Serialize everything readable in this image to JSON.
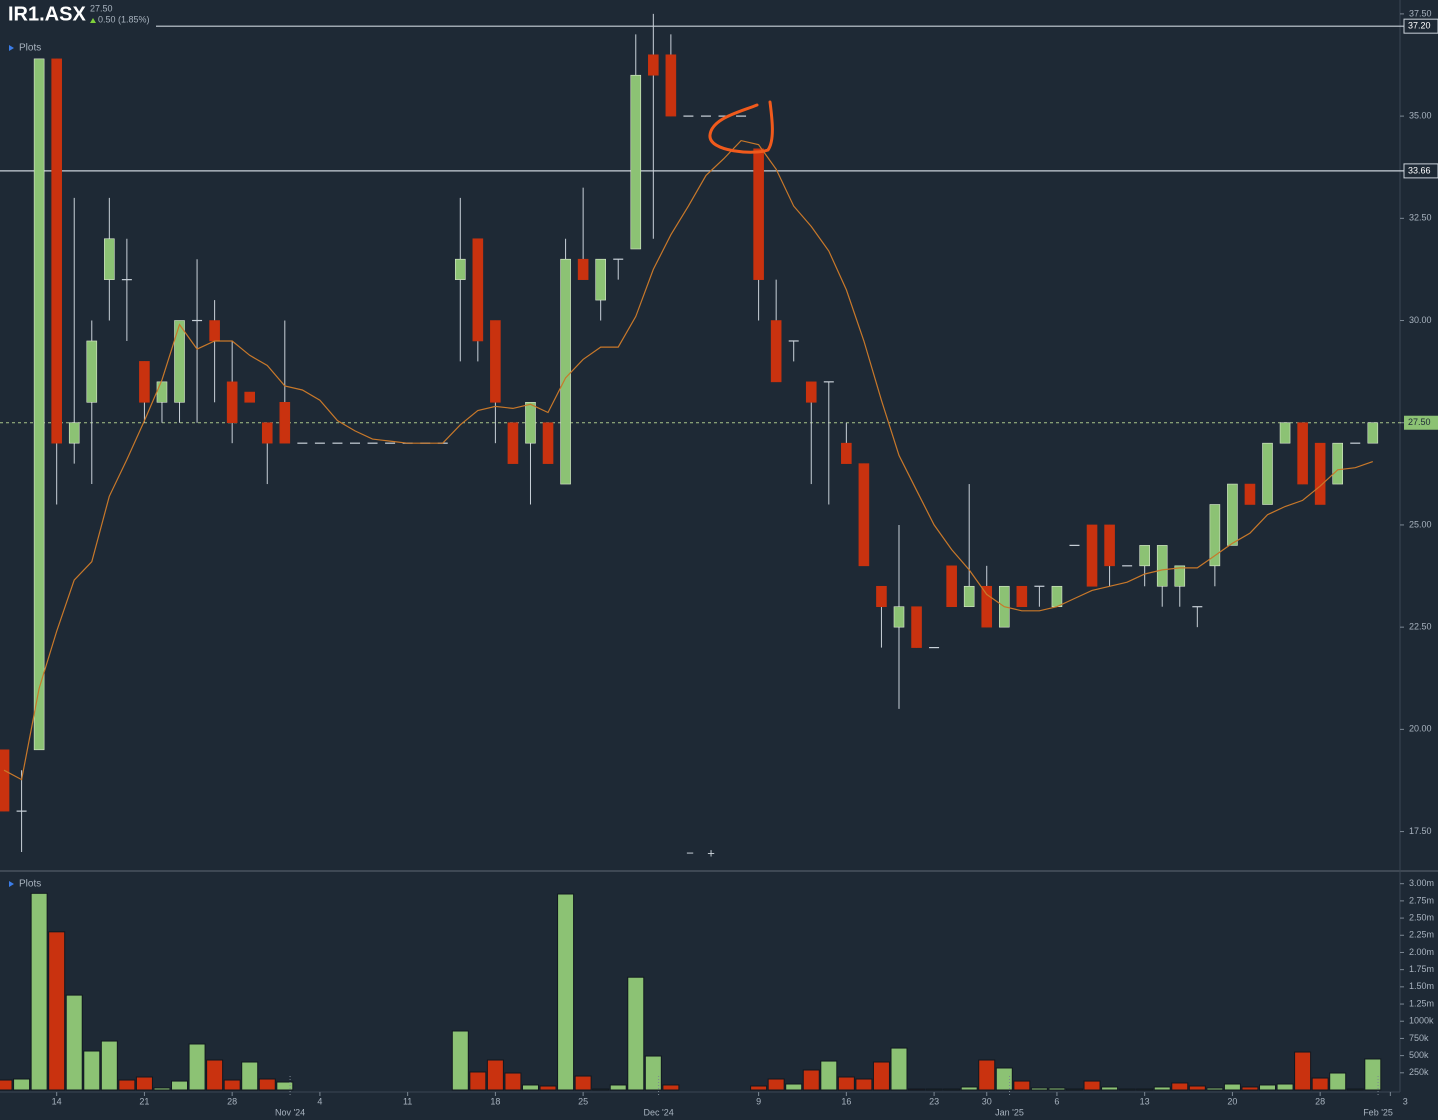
{
  "header": {
    "symbol": "IR1.ASX",
    "price": "27.50",
    "change": "0.50 (1.85%)"
  },
  "controls": {
    "zoom_out": "−",
    "zoom_in": "+"
  },
  "chart_data": [
    {
      "type": "candlestick",
      "legend_label": "Plots",
      "open": [
        19.5,
        18,
        19.5,
        36.4,
        27,
        28,
        31,
        31,
        29,
        28,
        28,
        30,
        30,
        28.5,
        28.25,
        27.5,
        28,
        27,
        27,
        27,
        27,
        27,
        27,
        27,
        27,
        27,
        31,
        32,
        30,
        27.5,
        27,
        27.5,
        26,
        31.5,
        30.5,
        31.5,
        31.75,
        36.5,
        36.5,
        35,
        35,
        35,
        35,
        34.2,
        30,
        29.5,
        28.5,
        28.5,
        27,
        26.5,
        23.5,
        22.5,
        23,
        22,
        24,
        23,
        23.5,
        22.5,
        23.5,
        23.5,
        23,
        24.5,
        25,
        25,
        24,
        24,
        23.5,
        23.5,
        23,
        24,
        24.5,
        26,
        25.5,
        27,
        27.5,
        27,
        26,
        27,
        27
      ],
      "high": [
        19.5,
        19,
        36.4,
        36.4,
        33,
        30,
        33,
        32,
        29,
        28.5,
        30,
        31.5,
        30.5,
        29.5,
        28.25,
        27.5,
        30,
        27,
        27,
        27,
        27,
        27,
        27,
        27,
        27,
        27,
        33,
        32,
        30,
        27.5,
        28,
        27.5,
        32,
        33.25,
        31.5,
        31.5,
        37,
        37.5,
        37,
        35,
        35,
        35,
        35,
        34.2,
        31,
        29.5,
        28.5,
        28.5,
        27.5,
        26.5,
        23.5,
        25,
        23,
        22,
        24,
        26,
        24,
        23.5,
        23.5,
        23.5,
        23.5,
        24.5,
        25,
        25,
        24,
        24.5,
        24.5,
        24,
        23,
        25.5,
        26,
        26,
        27,
        27.5,
        27.5,
        27,
        27,
        27,
        27.5
      ],
      "low": [
        18,
        17,
        19.5,
        25.5,
        26.5,
        26,
        30,
        29.5,
        27.5,
        27.5,
        27.5,
        27.5,
        28,
        27,
        28,
        26,
        27,
        27,
        27,
        27,
        27,
        27,
        27,
        27,
        27,
        27,
        29,
        29,
        27,
        26.5,
        25.5,
        26.5,
        26,
        31,
        30,
        31,
        31.75,
        32,
        35,
        35,
        35,
        35,
        35,
        30,
        28.5,
        29,
        26,
        25.5,
        26.5,
        24,
        22,
        20.5,
        22,
        22,
        23,
        23,
        22.5,
        22.5,
        23,
        23,
        23,
        24.5,
        23.5,
        23.5,
        24,
        23.5,
        23,
        23,
        22.5,
        23.5,
        24.5,
        25.5,
        25.5,
        27,
        26,
        25.5,
        26,
        27,
        27
      ],
      "close": [
        18,
        18,
        36.4,
        27,
        27.5,
        29.5,
        32,
        31,
        28,
        28.5,
        30,
        30,
        29.5,
        27.5,
        28,
        27,
        27,
        27,
        27,
        27,
        27,
        27,
        27,
        27,
        27,
        27,
        31.5,
        29.5,
        28,
        26.5,
        28,
        26.5,
        31.5,
        31,
        31.5,
        31.5,
        36,
        36,
        35,
        35,
        35,
        35,
        35,
        31,
        28.5,
        29.5,
        28,
        28.5,
        26.5,
        24,
        23,
        23,
        22,
        22,
        23,
        23.5,
        22.5,
        23.5,
        23,
        23.5,
        23.5,
        24.5,
        23.5,
        24,
        24,
        24.5,
        24.5,
        24,
        23,
        25.5,
        26,
        25.5,
        27,
        27.5,
        26,
        25.5,
        27,
        27,
        27.5
      ],
      "up_color": "#8cc274",
      "down_color": "#c9320f",
      "ma": {
        "color": "#c8782a",
        "values": [
          19,
          18.77,
          21,
          22.4,
          23.65,
          24.1,
          25.7,
          26.6,
          27.55,
          28.55,
          29.9,
          29.3,
          29.5,
          29.5,
          29.15,
          28.9,
          28.4,
          28.3,
          28.05,
          27.55,
          27.3,
          27.1,
          27.05,
          27,
          27,
          27,
          27.45,
          27.8,
          27.9,
          27.85,
          27.95,
          27.75,
          28.6,
          29.05,
          29.35,
          29.35,
          30.1,
          31.25,
          32.1,
          32.8,
          33.55,
          33.95,
          34.4,
          34.3,
          33.7,
          32.8,
          32.3,
          31.7,
          30.75,
          29.5,
          28.05,
          26.7,
          25.85,
          25,
          24.4,
          23.9,
          23.3,
          23,
          22.9,
          22.9,
          23,
          23.2,
          23.4,
          23.5,
          23.6,
          23.8,
          23.9,
          23.95,
          23.95,
          24.25,
          24.55,
          24.8,
          25.25,
          25.45,
          25.6,
          25.95,
          26.35,
          26.4,
          26.55
        ]
      },
      "xlim": [
        -0.23,
        79.55
      ],
      "ylim": [
        16.56,
        37.84
      ],
      "yticks": [
        {
          "value": 37.5,
          "label": "37.50"
        },
        {
          "value": 35,
          "label": "35.00"
        },
        {
          "value": 32.5,
          "label": "32.50"
        },
        {
          "value": 30,
          "label": "30.00"
        },
        {
          "value": 27.5,
          "label": "27.50"
        },
        {
          "value": 25,
          "label": "25.00"
        },
        {
          "value": 22.5,
          "label": "22.50"
        },
        {
          "value": 20,
          "label": "20.00"
        },
        {
          "value": 17.5,
          "label": "17.50"
        }
      ],
      "levels": [
        {
          "value": 37.2,
          "label": "37.20"
        },
        {
          "value": 33.66,
          "label": "33.66"
        }
      ],
      "last": {
        "value": 27.5,
        "label": "27.50"
      }
    },
    {
      "type": "volume",
      "legend_label": "Plots",
      "values": [
        145000,
        160000,
        2860000,
        2300000,
        1380000,
        567000,
        712000,
        145000,
        189000,
        30000,
        130000,
        669000,
        436000,
        145000,
        407000,
        160000,
        116000,
        0,
        0,
        0,
        0,
        0,
        0,
        0,
        0,
        0,
        858000,
        262000,
        436000,
        247000,
        73000,
        58000,
        2850000,
        203000,
        15000,
        73000,
        1640000,
        494000,
        73000,
        0,
        0,
        0,
        0,
        58000,
        160000,
        87000,
        291000,
        421000,
        189000,
        160000,
        407000,
        610000,
        15000,
        15000,
        15000,
        44000,
        436000,
        320000,
        130000,
        29000,
        29000,
        15000,
        130000,
        44000,
        15000,
        15000,
        44000,
        102000,
        58000,
        29000,
        87000,
        44000,
        73000,
        87000,
        552000,
        174000,
        247000,
        15000,
        451000
      ],
      "xlim": [
        -0.23,
        79.55
      ],
      "ylim": [
        0,
        3170000
      ],
      "yticks": [
        {
          "value": 3000000,
          "label": "3.00m"
        },
        {
          "value": 2750000,
          "label": "2.75m"
        },
        {
          "value": 2500000,
          "label": "2.50m"
        },
        {
          "value": 2250000,
          "label": "2.25m"
        },
        {
          "value": 2000000,
          "label": "2.00m"
        },
        {
          "value": 1750000,
          "label": "1.75m"
        },
        {
          "value": 1500000,
          "label": "1.50m"
        },
        {
          "value": 1250000,
          "label": "1.25m"
        },
        {
          "value": 1000000,
          "label": "1000k"
        },
        {
          "value": 750000,
          "label": "750k"
        },
        {
          "value": 500000,
          "label": "500k"
        },
        {
          "value": 250000,
          "label": "250k"
        }
      ],
      "xticks": [
        {
          "value": 3,
          "label": "14"
        },
        {
          "value": 8,
          "label": "21"
        },
        {
          "value": 13,
          "label": "28"
        },
        {
          "value": 18,
          "label": "4"
        },
        {
          "value": 23,
          "label": "11"
        },
        {
          "value": 28,
          "label": "18"
        },
        {
          "value": 33,
          "label": "25"
        },
        {
          "value": 43,
          "label": "9"
        },
        {
          "value": 48,
          "label": "16"
        },
        {
          "value": 53,
          "label": "23"
        },
        {
          "value": 56,
          "label": "30"
        },
        {
          "value": 60,
          "label": "6"
        },
        {
          "value": 65,
          "label": "13"
        },
        {
          "value": 70,
          "label": "20"
        },
        {
          "value": 75,
          "label": "28"
        },
        {
          "value": 79,
          "label": "3"
        }
      ],
      "month_ticks": [
        {
          "value": 17,
          "label": "Nov '24"
        },
        {
          "value": 38,
          "label": "Dec '24"
        },
        {
          "value": 58,
          "label": "Jan '25"
        },
        {
          "value": 79,
          "label": "Feb '25"
        }
      ]
    }
  ]
}
